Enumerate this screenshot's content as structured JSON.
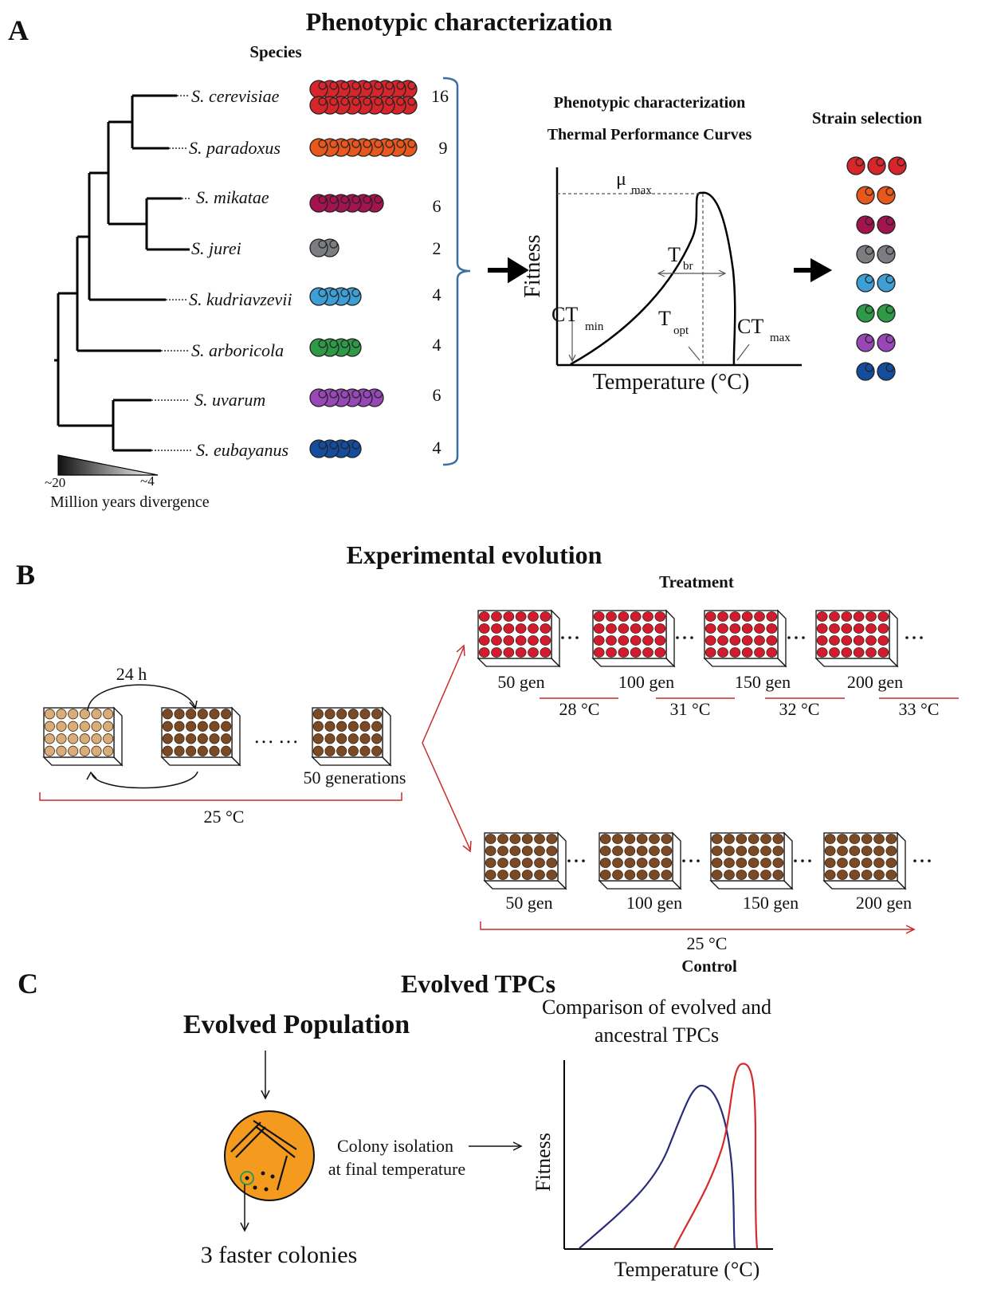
{
  "panel_a": {
    "letter": "A",
    "title": "Phenotypic characterization",
    "species_header": "Species",
    "scale_left": "~20",
    "scale_right": "~4",
    "scale_label": "Million years divergence",
    "species": [
      {
        "name": "S. cerevisiae",
        "count": "16",
        "color": "#d7262b"
      },
      {
        "name": "S. paradoxus",
        "count": "9",
        "color": "#e8571c"
      },
      {
        "name": "S. mikatae",
        "count": "6",
        "color": "#a3144f"
      },
      {
        "name": "S. jurei",
        "count": "2",
        "color": "#7b7d80"
      },
      {
        "name": "S. kudriavzevii",
        "count": "4",
        "color": "#3d9fd6"
      },
      {
        "name": "S. arboricola",
        "count": "4",
        "color": "#2e9a48"
      },
      {
        "name": "S. uvarum",
        "count": "6",
        "color": "#9747b8"
      },
      {
        "name": "S. eubayanus",
        "count": "4",
        "color": "#144c9e"
      }
    ],
    "tpc_title_1": "Phenotypic characterization",
    "tpc_title_2": "Thermal Performance Curves",
    "tpc_y": "Fitness",
    "tpc_x": "Temperature (°C)",
    "mu": "μ",
    "mu_sub": "max",
    "tbr": "T",
    "tbr_sub": "br",
    "ctmin": "CT",
    "ctmin_sub": "min",
    "topt": "T",
    "topt_sub": "opt",
    "ctmax": "CT",
    "ctmax_sub": "max",
    "selection_title": "Strain selection"
  },
  "panel_b": {
    "letter": "B",
    "title": "Experimental evolution",
    "cycle_time": "24 h",
    "initial_generations": "50 generations",
    "initial_temp": "25 °C",
    "treatment_label": "Treatment",
    "treatment_gens": [
      "50 gen",
      "100 gen",
      "150 gen",
      "200 gen"
    ],
    "treatment_temps": [
      "28 °C",
      "31 °C",
      "32 °C",
      "33 °C"
    ],
    "control_label": "Control",
    "control_gens": [
      "50 gen",
      "100 gen",
      "150 gen",
      "200 gen"
    ],
    "control_temp": "25 °C",
    "colors": {
      "tan": "#d9ad7a",
      "brown": "#7a4a27",
      "red": "#d21b2e",
      "arrow": "#cc2a2a"
    }
  },
  "panel_c": {
    "letter": "C",
    "title": "Evolved TPCs",
    "population_label": "Evolved Population",
    "isolation_line1": "Colony isolation",
    "isolation_line2": "at final temperature",
    "colonies_label": "3 faster colonies",
    "comparison_line1": "Comparison of evolved and",
    "comparison_line2": "ancestral TPCs",
    "y_label": "Fitness",
    "x_label": "Temperature (°C)",
    "colors": {
      "plate": "#f39a1f",
      "ancestral": "#2a2c7a",
      "evolved": "#d52a2a"
    }
  }
}
